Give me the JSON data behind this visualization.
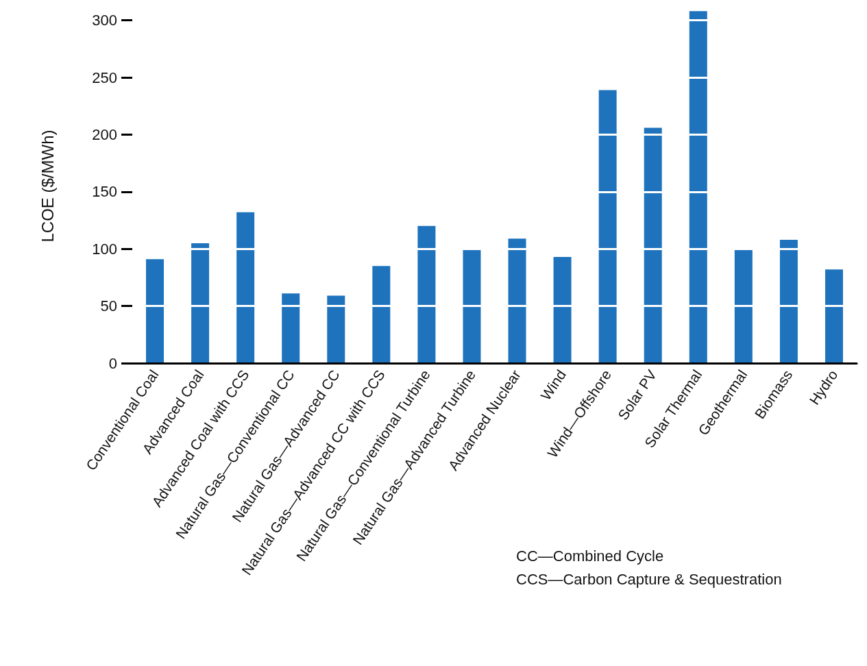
{
  "chart_data": {
    "type": "bar",
    "ylabel": "LCOE ($/MWh)",
    "categories": [
      "Conventional Coal",
      "Advanced Coal",
      "Advanced Coal with CCS",
      "Natural Gas—Conventional CC",
      "Natural Gas—Advanced CC",
      "Natural Gas—Advanced CC with CCS",
      "Natural Gas—Conventional Turbine",
      "Natural Gas—Advanced Turbine",
      "Advanced Nuclear",
      "Wind",
      "Wind—Offshore",
      "Solar PV",
      "Solar Thermal",
      "Geothermal",
      "Biomass",
      "Hydro"
    ],
    "values": [
      91,
      105,
      132,
      61,
      59,
      85,
      120,
      99,
      109,
      93,
      239,
      206,
      308,
      99,
      108,
      82
    ],
    "color": "#1f73bd",
    "ylim": [
      0,
      310
    ],
    "yticks": [
      0,
      50,
      100,
      150,
      200,
      250,
      300
    ],
    "grid": "y",
    "annotations": [
      "CC—Combined Cycle",
      "CCS—Carbon Capture & Sequestration"
    ]
  }
}
